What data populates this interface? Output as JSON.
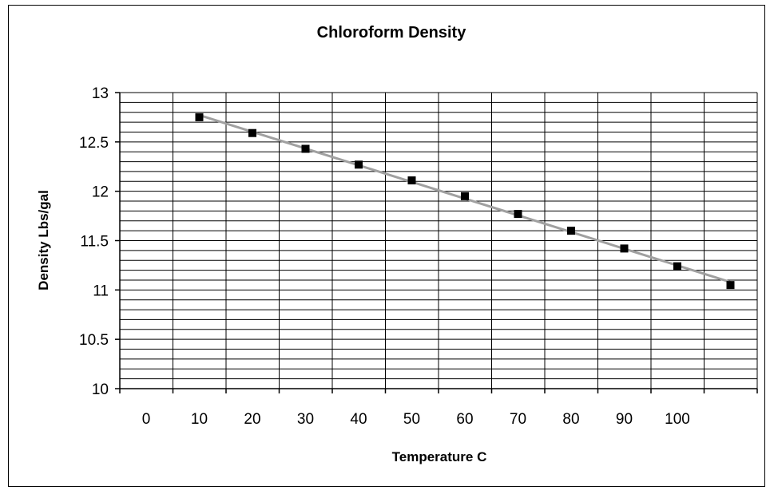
{
  "chart_data": {
    "type": "scatter",
    "title": "Chloroform Density",
    "xlabel": "Temperature C",
    "ylabel": "Density Lbs/gal",
    "x_tick_labels": [
      "0",
      "10",
      "20",
      "30",
      "40",
      "50",
      "60",
      "70",
      "80",
      "90",
      "100"
    ],
    "y_tick_labels": [
      "10",
      "10.5",
      "11",
      "11.5",
      "12",
      "12.5",
      "13"
    ],
    "ylim": [
      10,
      13
    ],
    "y_major_step": 0.5,
    "y_minor_step": 0.1,
    "grid": true,
    "trendline": true,
    "colors": {
      "marker": "#000000",
      "trendline": "#a0a0a0",
      "grid": "#000000"
    },
    "series": [
      {
        "x": [
          10,
          20,
          30,
          40,
          50,
          60,
          70,
          80,
          90,
          100,
          110
        ],
        "y": [
          12.75,
          12.59,
          12.43,
          12.27,
          12.11,
          11.95,
          11.77,
          11.6,
          11.42,
          11.24,
          11.05
        ]
      }
    ]
  }
}
